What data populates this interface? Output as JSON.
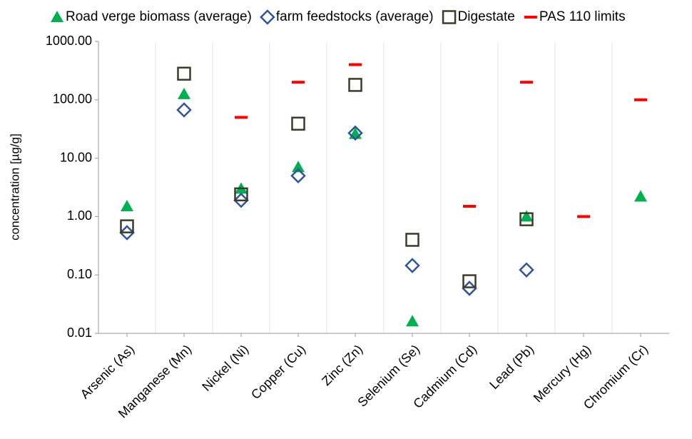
{
  "chart_data": {
    "type": "scatter",
    "yscale": "log",
    "y_label": "concentration [µg/g]",
    "categories": [
      "Arsenic (As)",
      "Manganese (Mn)",
      "Nickel (Ni)",
      "Copper (Cu)",
      "Zinc (Zn)",
      "Selenium (Se)",
      "Cadmium (Cd)",
      "Lead (Pb)",
      "Mercury (Hg)",
      "Chromium (Cr)"
    ],
    "series": [
      {
        "name": "Road verge biomass (average)",
        "color": "#00b050",
        "marker": "triangle",
        "values": [
          1.5,
          125,
          3.0,
          7,
          26,
          0.016,
          null,
          1.0,
          null,
          2.2
        ]
      },
      {
        "name": "farm feedstocks (average)",
        "color": "#2f5597",
        "marker": "diamond",
        "values": [
          0.53,
          67,
          1.9,
          5.0,
          27,
          0.145,
          0.059,
          0.122,
          null,
          null
        ]
      },
      {
        "name": "Digestate",
        "color": "#3d3a2a",
        "marker": "square",
        "values": [
          0.68,
          280,
          2.4,
          39,
          180,
          0.4,
          0.078,
          0.9,
          null,
          null
        ]
      },
      {
        "name": "PAS 110 limits",
        "color": "#ff0000",
        "marker": "dash",
        "values": [
          null,
          null,
          50,
          200,
          400,
          null,
          1.5,
          200,
          1,
          100
        ]
      }
    ],
    "ylim": [
      0.01,
      1000
    ],
    "yticks": [
      {
        "value": 0.01,
        "label": "0.01"
      },
      {
        "value": 0.1,
        "label": "0.10"
      },
      {
        "value": 1,
        "label": "1.00"
      },
      {
        "value": 10,
        "label": "10.00"
      },
      {
        "value": 100,
        "label": "100.00"
      },
      {
        "value": 1000,
        "label": "1000.00"
      }
    ],
    "grid": true,
    "legend": "top"
  }
}
